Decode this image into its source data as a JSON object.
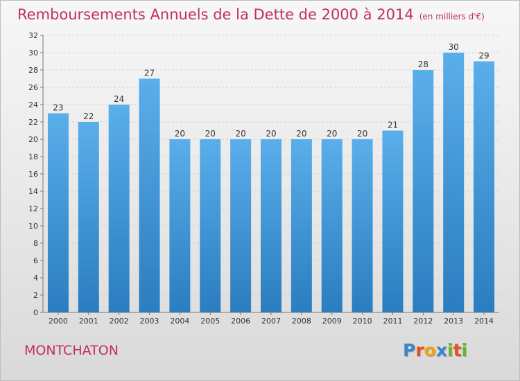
{
  "title": "Remboursements Annuels de la Dette de 2000 à 2014",
  "subtitle": "(en milliers d'€)",
  "commune": "MONTCHATON",
  "logo": {
    "text": "Proxiti",
    "colors": [
      "#3a86c8",
      "#e84e1b",
      "#f0a30a",
      "#3a86c8",
      "#6ab42d",
      "#e84e1b",
      "#6ab42d"
    ]
  },
  "colors": {
    "bar_top": "#5aaeea",
    "bar_bottom": "#2a7dbf",
    "title": "#c0305a",
    "grid": "#d4d4d4"
  },
  "chart_data": {
    "type": "bar",
    "categories": [
      "2000",
      "2001",
      "2002",
      "2003",
      "2004",
      "2005",
      "2006",
      "2007",
      "2008",
      "2009",
      "2010",
      "2011",
      "2012",
      "2013",
      "2014"
    ],
    "values": [
      23,
      22,
      24,
      27,
      20,
      20,
      20,
      20,
      20,
      20,
      20,
      21,
      28,
      30,
      29
    ],
    "yticks": [
      0,
      2,
      4,
      6,
      8,
      10,
      12,
      14,
      16,
      18,
      20,
      22,
      24,
      26,
      28,
      30,
      32
    ],
    "ylim": [
      0,
      32
    ],
    "grid": true,
    "data_labels": true
  }
}
